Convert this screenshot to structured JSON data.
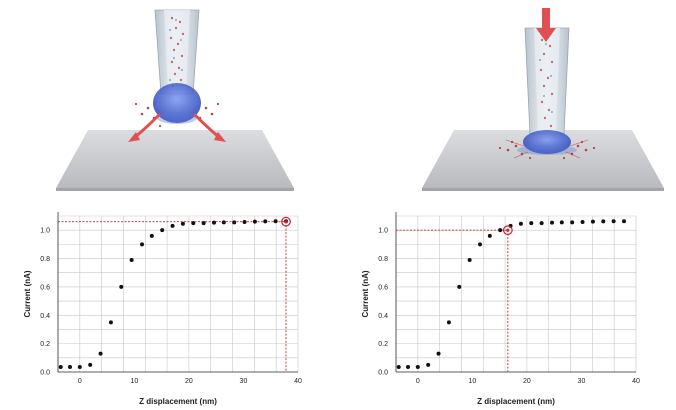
{
  "colors": {
    "glass": "#cfd8e0",
    "electrolyte_dots": "#c0404a",
    "droplet": "#3a5fc8",
    "arrow": "#e05050",
    "surface": "#c8c9cc",
    "grid": "#c8c8c8",
    "points": "#111111",
    "marker": "#c8242c"
  },
  "icons": {
    "left": [
      "pipette-icon",
      "droplet-icon",
      "flow-arrow-icon",
      "sample-surface-icon"
    ],
    "right": [
      "pipette-icon",
      "approach-arrow-icon",
      "droplet-icon",
      "sample-surface-icon"
    ]
  },
  "chart_data": [
    {
      "type": "scatter",
      "xlabel": "Z displacement (nm)",
      "ylabel": "Current (nA)",
      "xlim": [
        -4,
        40
      ],
      "ylim": [
        0,
        1.1
      ],
      "x_ticks": [
        "0",
        "10",
        "20",
        "30",
        "40"
      ],
      "y_ticks": [
        "0.0",
        "0.2",
        "0.4",
        "0.6",
        "0.8",
        "1.0"
      ],
      "grid": true,
      "x": [
        -3.5,
        -1.8,
        0,
        1.9,
        3.8,
        5.7,
        7.6,
        9.5,
        11.4,
        13.2,
        15.1,
        17,
        18.9,
        20.8,
        22.7,
        24.6,
        26.4,
        28.3,
        30.2,
        32.1,
        34,
        35.9,
        37.8
      ],
      "y": [
        0.035,
        0.035,
        0.035,
        0.05,
        0.13,
        0.35,
        0.6,
        0.79,
        0.9,
        0.96,
        1.0,
        1.03,
        1.045,
        1.05,
        1.05,
        1.053,
        1.055,
        1.055,
        1.058,
        1.06,
        1.062,
        1.063,
        1.063
      ],
      "highlight": {
        "x": 37.8,
        "y": 1.06
      }
    },
    {
      "type": "scatter",
      "xlabel": "Z displacement (nm)",
      "ylabel": "Current (nA)",
      "xlim": [
        -4,
        40
      ],
      "ylim": [
        0,
        1.1
      ],
      "x_ticks": [
        "0",
        "10",
        "20",
        "30",
        "40"
      ],
      "y_ticks": [
        "0.0",
        "0.2",
        "0.4",
        "0.6",
        "0.8",
        "1.0"
      ],
      "grid": true,
      "x": [
        -3.5,
        -1.8,
        0,
        1.9,
        3.8,
        5.7,
        7.6,
        9.5,
        11.4,
        13.2,
        15.1,
        17,
        18.9,
        20.8,
        22.7,
        24.6,
        26.4,
        28.3,
        30.2,
        32.1,
        34,
        35.9,
        37.8
      ],
      "y": [
        0.035,
        0.035,
        0.035,
        0.05,
        0.13,
        0.35,
        0.6,
        0.79,
        0.9,
        0.96,
        1.0,
        1.03,
        1.045,
        1.05,
        1.05,
        1.053,
        1.055,
        1.055,
        1.058,
        1.06,
        1.062,
        1.063,
        1.063
      ],
      "highlight": {
        "x": 16.5,
        "y": 1.0
      }
    }
  ]
}
